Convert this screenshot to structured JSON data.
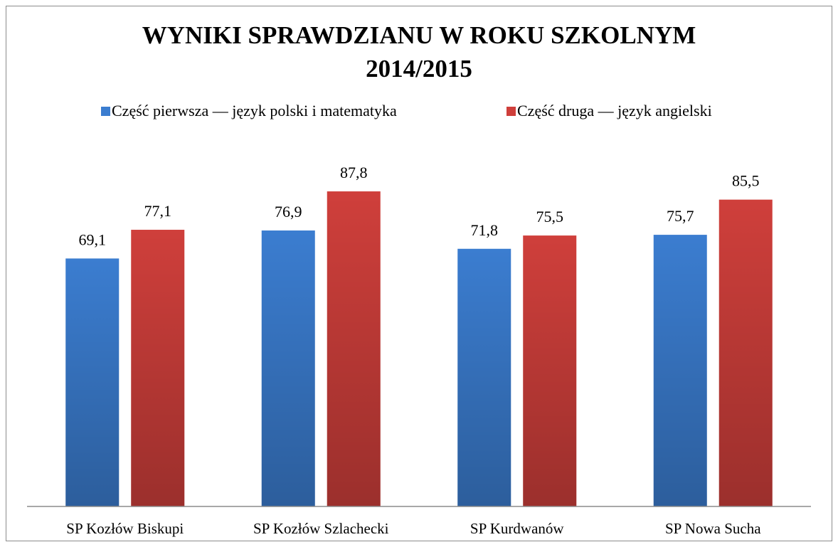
{
  "chart_data": {
    "type": "bar",
    "title": "WYNIKI SPRAWDZIANU W ROKU SZKOLNYM 2014/2015",
    "categories": [
      "SP Kozłów Biskupi",
      "SP Kozłów Szlachecki",
      "SP Kurdwanów",
      "SP Nowa Sucha"
    ],
    "series": [
      {
        "name": "Część pierwsza — język polski i matematyka",
        "color": "#3b7dd0",
        "values": [
          69.1,
          76.9,
          71.8,
          75.7
        ],
        "value_labels": [
          "69,1",
          "76,9",
          "71,8",
          "75,7"
        ]
      },
      {
        "name": "Część druga — język angielski",
        "color": "#cf3f3b",
        "values": [
          77.1,
          87.8,
          75.5,
          85.5
        ],
        "value_labels": [
          "77,1",
          "87,8",
          "75,5",
          "85,5"
        ]
      }
    ],
    "ylim": [
      0,
      100
    ],
    "legend": "top"
  }
}
